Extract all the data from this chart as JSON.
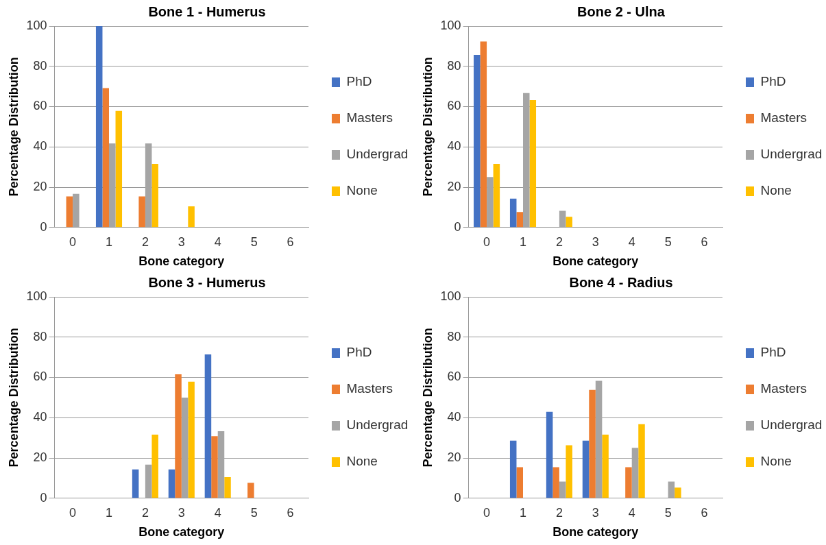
{
  "chart_data": [
    {
      "type": "bar",
      "title": "Bone 1 - Humerus",
      "xlabel": "Bone category",
      "ylabel": "Percentage Distribution",
      "categories": [
        "0",
        "1",
        "2",
        "3",
        "4",
        "5",
        "6"
      ],
      "ylim": [
        0,
        100
      ],
      "yticks": [
        0,
        20,
        40,
        60,
        80,
        100
      ],
      "grid": "y",
      "legend": "right",
      "series": [
        {
          "name": "PhD",
          "color": "#4472c4",
          "values": [
            0,
            100,
            0,
            0,
            0,
            0,
            0
          ]
        },
        {
          "name": "Masters",
          "color": "#ed7d31",
          "values": [
            15.4,
            69.2,
            15.4,
            0,
            0,
            0,
            0
          ]
        },
        {
          "name": "Undergrad",
          "color": "#a5a5a5",
          "values": [
            16.7,
            41.7,
            41.7,
            0,
            0,
            0,
            0
          ]
        },
        {
          "name": "None",
          "color": "#ffc000",
          "values": [
            0,
            57.9,
            31.6,
            10.5,
            0,
            0,
            0
          ]
        }
      ]
    },
    {
      "type": "bar",
      "title": "Bone 2 - Ulna",
      "xlabel": "Bone category",
      "ylabel": "Percentage Distribution",
      "categories": [
        "0",
        "1",
        "2",
        "3",
        "4",
        "5",
        "6"
      ],
      "ylim": [
        0,
        100
      ],
      "yticks": [
        0,
        20,
        40,
        60,
        80,
        100
      ],
      "grid": "y",
      "legend": "right",
      "series": [
        {
          "name": "PhD",
          "color": "#4472c4",
          "values": [
            85.7,
            14.3,
            0,
            0,
            0,
            0,
            0
          ]
        },
        {
          "name": "Masters",
          "color": "#ed7d31",
          "values": [
            92.3,
            7.7,
            0,
            0,
            0,
            0,
            0
          ]
        },
        {
          "name": "Undergrad",
          "color": "#a5a5a5",
          "values": [
            25,
            66.7,
            8.3,
            0,
            0,
            0,
            0
          ]
        },
        {
          "name": "None",
          "color": "#ffc000",
          "values": [
            31.6,
            63.2,
            5.3,
            0,
            0,
            0,
            0
          ]
        }
      ]
    },
    {
      "type": "bar",
      "title": "Bone 3 - Humerus",
      "xlabel": "Bone category",
      "ylabel": "Percentage Distribution",
      "categories": [
        "0",
        "1",
        "2",
        "3",
        "4",
        "5",
        "6"
      ],
      "ylim": [
        0,
        100
      ],
      "yticks": [
        0,
        20,
        40,
        60,
        80,
        100
      ],
      "grid": "y",
      "legend": "right",
      "series": [
        {
          "name": "PhD",
          "color": "#4472c4",
          "values": [
            0,
            0,
            14.3,
            14.3,
            71.4,
            0,
            0
          ]
        },
        {
          "name": "Masters",
          "color": "#ed7d31",
          "values": [
            0,
            0,
            0,
            61.5,
            30.8,
            7.7,
            0
          ]
        },
        {
          "name": "Undergrad",
          "color": "#a5a5a5",
          "values": [
            0,
            0,
            16.7,
            50,
            33.3,
            0,
            0
          ]
        },
        {
          "name": "None",
          "color": "#ffc000",
          "values": [
            0,
            0,
            31.6,
            57.9,
            10.5,
            0,
            0
          ]
        }
      ]
    },
    {
      "type": "bar",
      "title": "Bone 4 - Radius",
      "xlabel": "Bone category",
      "ylabel": "Percentage Distribution",
      "categories": [
        "0",
        "1",
        "2",
        "3",
        "4",
        "5",
        "6"
      ],
      "ylim": [
        0,
        100
      ],
      "yticks": [
        0,
        20,
        40,
        60,
        80,
        100
      ],
      "grid": "y",
      "legend": "right",
      "series": [
        {
          "name": "PhD",
          "color": "#4472c4",
          "values": [
            0,
            28.6,
            42.9,
            28.6,
            0,
            0,
            0
          ]
        },
        {
          "name": "Masters",
          "color": "#ed7d31",
          "values": [
            0,
            15.4,
            15.4,
            53.8,
            15.4,
            0,
            0
          ]
        },
        {
          "name": "Undergrad",
          "color": "#a5a5a5",
          "values": [
            0,
            0,
            8.3,
            58.3,
            25,
            8.3,
            0
          ]
        },
        {
          "name": "None",
          "color": "#ffc000",
          "values": [
            0,
            0,
            26.3,
            31.6,
            36.8,
            5.3,
            0
          ]
        }
      ]
    }
  ]
}
